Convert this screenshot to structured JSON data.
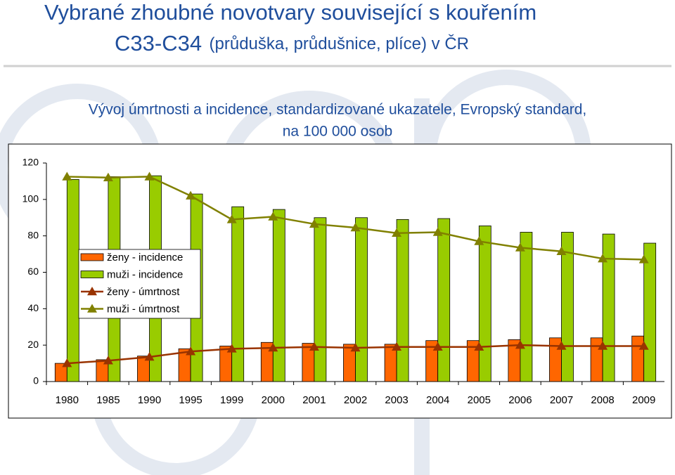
{
  "chart_data": {
    "type": "bar",
    "title": [
      "Vybrané zhoubné novotvary související  s kouřením",
      "C33-C34",
      "(průduška, průdušnice, plíce) v ČR"
    ],
    "subtitle": [
      "Vývoj úmrtnosti a incidence, standardizované ukazatele, Evropský standard,",
      "na 100 000 osob"
    ],
    "categories": [
      "1980",
      "1985",
      "1990",
      "1995",
      "1999",
      "2000",
      "2001",
      "2002",
      "2003",
      "2004",
      "2005",
      "2006",
      "2007",
      "2008",
      "2009"
    ],
    "series": [
      {
        "name": "ženy - incidence",
        "type": "bar",
        "color": "#ff6600",
        "values": [
          10,
          12,
          14,
          18,
          19.5,
          21.5,
          21,
          20.5,
          20.5,
          22.5,
          22.5,
          23,
          24,
          24,
          25
        ]
      },
      {
        "name": "muži - incidence",
        "type": "bar",
        "color": "#99cc00",
        "values": [
          111,
          112.5,
          113,
          103,
          96,
          94.5,
          90,
          90,
          89,
          89.5,
          85.5,
          82,
          82,
          81,
          76
        ]
      },
      {
        "name": "ženy - úmrtnost",
        "type": "line",
        "color": "#993300",
        "values": [
          10,
          11.5,
          13.5,
          16.5,
          18,
          18.5,
          19,
          18.5,
          19,
          19,
          19,
          20,
          19.5,
          19.5,
          19.5
        ]
      },
      {
        "name": "muži - úmrtnost",
        "type": "line",
        "color": "#808000",
        "values": [
          112.5,
          112,
          112.5,
          102,
          89,
          90.5,
          86.5,
          84.5,
          81.5,
          82,
          77,
          73.5,
          71.5,
          67.5,
          67
        ]
      }
    ],
    "ylim": [
      0,
      120
    ],
    "yticks": [
      0,
      20,
      40,
      60,
      80,
      100,
      120
    ],
    "legend": "left"
  }
}
